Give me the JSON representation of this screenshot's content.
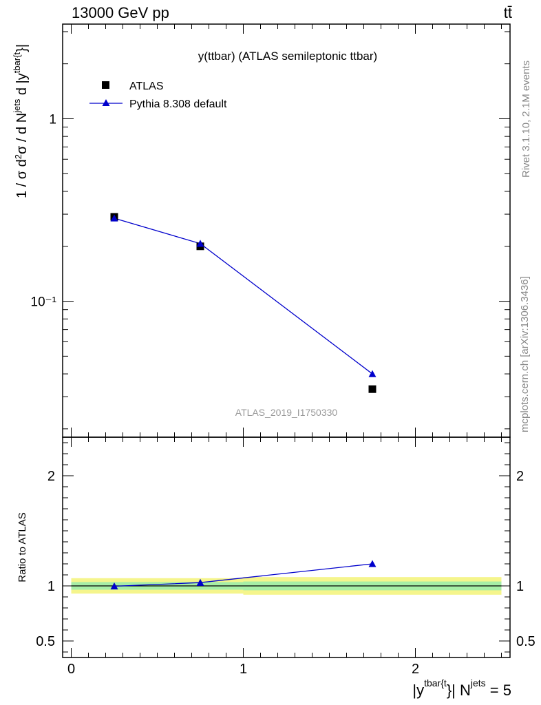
{
  "header": {
    "left": "13000 GeV pp",
    "right": "tt̄"
  },
  "side_labels": {
    "rivet": "Rivet 3.1.10,  2.1M events",
    "mcplots": "mcplots.cern.ch [arXiv:1306.3436]"
  },
  "chart_data": [
    {
      "type": "scatter",
      "title": "y(ttbar) (ATLAS semileptonic ttbar)",
      "watermark": "ATLAS_2019_I1750330",
      "ylabel": "1 / σ d²σ / d N^jets d |y^tbar{t}|",
      "yscale": "log",
      "ylim": [
        0.018,
        3.3
      ],
      "xlim": [
        -0.05,
        2.55
      ],
      "y_tick_labels": [
        "10⁻¹",
        "1"
      ],
      "legend": {
        "placement": "top-left",
        "entries": [
          "ATLAS",
          "Pythia 8.308 default"
        ]
      },
      "series": [
        {
          "name": "ATLAS",
          "marker": "square",
          "color": "#000000",
          "x": [
            0.25,
            0.75,
            1.75
          ],
          "y": [
            0.29,
            0.2,
            0.033
          ]
        },
        {
          "name": "Pythia 8.308 default",
          "marker": "triangle",
          "color": "#0000cc",
          "x": [
            0.25,
            0.75,
            1.75
          ],
          "y": [
            0.285,
            0.207,
            0.04
          ]
        }
      ]
    },
    {
      "type": "line",
      "ylabel": "Ratio to ATLAS",
      "xlabel": "|y^tbar{t}| N^jets = 5",
      "ylim": [
        0.35,
        2.35
      ],
      "xlim": [
        -0.05,
        2.55
      ],
      "x_tick_labels": [
        "0",
        "1",
        "2"
      ],
      "y_tick_labels": [
        "0.5",
        "1",
        "2"
      ],
      "bands": [
        {
          "name": "outer",
          "color": "#f5f58c",
          "segments": [
            {
              "x0": 0.0,
              "x1": 1.0,
              "lo": 0.93,
              "hi": 1.07
            },
            {
              "x0": 1.0,
              "x1": 2.5,
              "lo": 0.92,
              "hi": 1.08
            }
          ]
        },
        {
          "name": "inner",
          "color": "#a6eea6",
          "segments": [
            {
              "x0": 0.0,
              "x1": 1.0,
              "lo": 0.965,
              "hi": 1.035
            },
            {
              "x0": 1.0,
              "x1": 2.5,
              "lo": 0.96,
              "hi": 1.04
            }
          ]
        }
      ],
      "reference": 1.0,
      "series": [
        {
          "name": "Pythia 8.308 default",
          "marker": "triangle",
          "color": "#0000cc",
          "x": [
            0.25,
            0.75,
            1.75
          ],
          "y": [
            0.997,
            1.03,
            1.2
          ]
        }
      ]
    }
  ]
}
